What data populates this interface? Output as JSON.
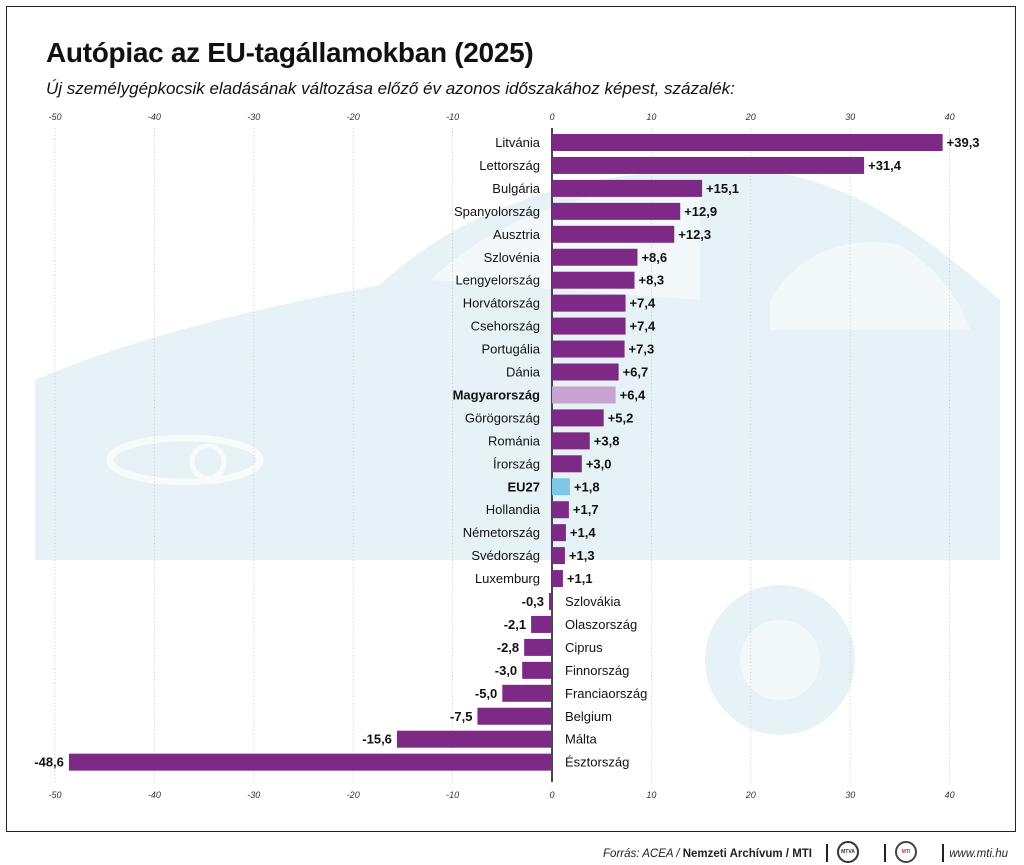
{
  "header": {
    "title": "Autópiac az EU-tagállamokban (2025)",
    "subtitle": "Új személygépkocsik eladásának változása előző év azonos időszakához képest, százalék:"
  },
  "colors": {
    "bar": "#7d2a86",
    "highlight_hungary": "#c9a3cf",
    "highlight_eu": "#7fc6e6",
    "background_art": "#e6f2f6"
  },
  "chart_data": {
    "type": "bar",
    "orientation": "horizontal",
    "xlim": [
      -50,
      40
    ],
    "ticks": [
      "-50",
      "-40",
      "-30",
      "-20",
      "-10",
      "0",
      "10",
      "20",
      "30",
      "40"
    ],
    "tick_values": [
      -50,
      -40,
      -30,
      -20,
      -10,
      0,
      10,
      20,
      30,
      40
    ],
    "grid": true,
    "categories": [
      "Litvánia",
      "Lettország",
      "Bulgária",
      "Spanyolország",
      "Ausztria",
      "Szlovénia",
      "Lengyelország",
      "Horvátország",
      "Csehország",
      "Portugália",
      "Dánia",
      "Magyarország",
      "Görögország",
      "Románia",
      "Írország",
      "EU27",
      "Hollandia",
      "Németország",
      "Svédország",
      "Luxemburg",
      "Szlovákia",
      "Olaszország",
      "Ciprus",
      "Finnország",
      "Franciaország",
      "Belgium",
      "Málta",
      "Észtország"
    ],
    "values": [
      39.3,
      31.4,
      15.1,
      12.9,
      12.3,
      8.6,
      8.3,
      7.4,
      7.4,
      7.3,
      6.7,
      6.4,
      5.2,
      3.8,
      3.0,
      1.8,
      1.7,
      1.4,
      1.3,
      1.1,
      -0.3,
      -2.1,
      -2.8,
      -3.0,
      -5.0,
      -7.5,
      -15.6,
      -48.6
    ],
    "value_labels": [
      "+39,3",
      "+31,4",
      "+15,1",
      "+12,9",
      "+12,3",
      "+8,6",
      "+8,3",
      "+7,4",
      "+7,4",
      "+7,3",
      "+6,7",
      "+6,4",
      "+5,2",
      "+3,8",
      "+3,0",
      "+1,8",
      "+1,7",
      "+1,4",
      "+1,3",
      "+1,1",
      "-0,3",
      "-2,1",
      "-2,8",
      "-3,0",
      "-5,0",
      "-7,5",
      "-15,6",
      "-48,6"
    ],
    "highlight": {
      "Magyarország": "hungary",
      "EU27": "eu"
    },
    "bold_labels": [
      "Magyarország",
      "EU27"
    ]
  },
  "footer": {
    "source_prefix": "Forrás: ACEA /",
    "source_bold": "Nemzeti Archívum / MTI",
    "logo1": "MTVA",
    "logo2": "MTI",
    "website": "www.mti.hu"
  }
}
